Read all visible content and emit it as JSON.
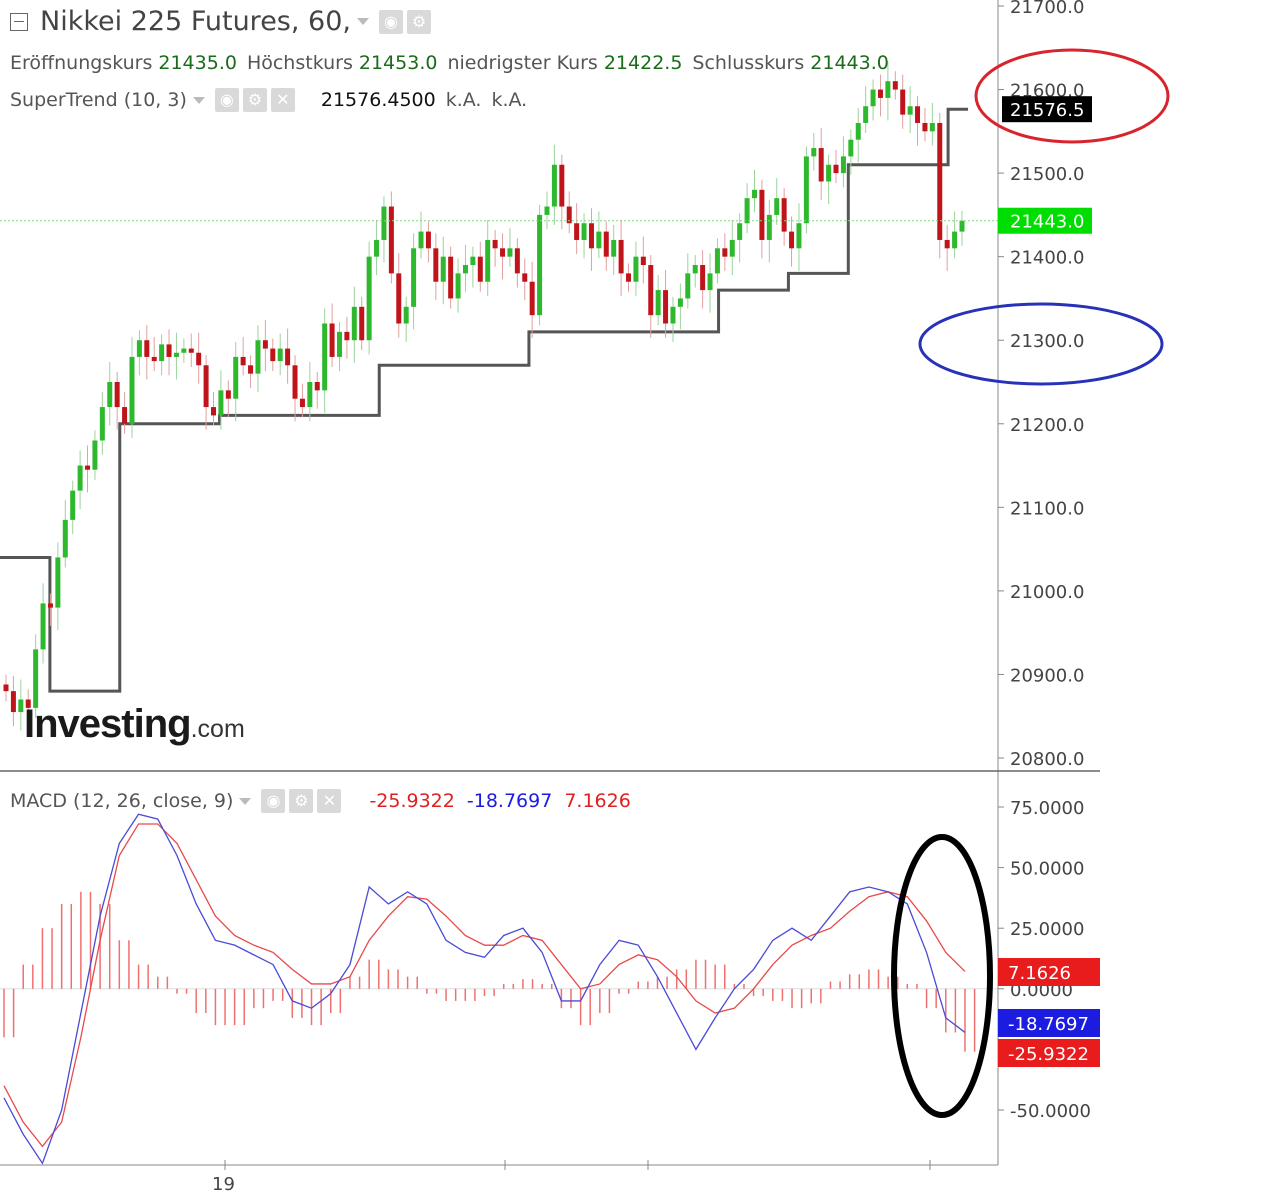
{
  "header": {
    "title": "Nikkei 225 Futures, 60,",
    "ohlc": [
      {
        "label": "Eröffnungskurs",
        "value": "21435.0"
      },
      {
        "label": "Höchstkurs",
        "value": "21453.0"
      },
      {
        "label": "niedrigster Kurs",
        "value": "21422.5"
      },
      {
        "label": "Schlusskurs",
        "value": "21443.0"
      }
    ]
  },
  "supertrend_legend": {
    "name": "SuperTrend (10, 3)",
    "value": "21576.4500",
    "na1": "k.A.",
    "na2": "k.A."
  },
  "macd_legend": {
    "name": "MACD (12, 26, close, 9)",
    "histogram": "-25.9322",
    "macd": "-18.7697",
    "signal": "7.1626"
  },
  "logo": {
    "main": "Investing",
    "suffix": ".com"
  },
  "colors": {
    "up": "#2eb82e",
    "down": "#c0141b",
    "supertrend": "#555555",
    "macd_line": "#4a4ad6",
    "signal_line": "#e84a4a",
    "histogram": "#f07070",
    "last_price": "#00dd00"
  },
  "annotations": [
    {
      "shape": "ellipse",
      "color": "#d9232d",
      "around": "21576.5"
    },
    {
      "shape": "ellipse",
      "color": "#2832b8",
      "around": "21300.0"
    },
    {
      "shape": "ellipse",
      "color": "#000000",
      "around": "MACD crossover"
    }
  ],
  "chart_data": [
    {
      "type": "candlestick",
      "title": "Nikkei 225 Futures, 60,",
      "y_ticks": [
        "21700.0",
        "21600.0",
        "21500.0",
        "21400.0",
        "21300.0",
        "21200.0",
        "21100.0",
        "21000.0",
        "20900.0",
        "20800.0"
      ],
      "ylim": [
        20800,
        21700
      ],
      "x_tick_labels": [
        "19"
      ],
      "last_price_label": "21443.0",
      "last_price_value": 21443.0,
      "supertrend_label": "21576.5",
      "supertrend_last_value": 21576.5,
      "candles_close": [
        20880,
        20855,
        20870,
        20860,
        20930,
        20985,
        20980,
        21040,
        21085,
        21120,
        21150,
        21145,
        21180,
        21220,
        21250,
        21220,
        21200,
        21280,
        21300,
        21280,
        21275,
        21295,
        21280,
        21285,
        21290,
        21285,
        21270,
        21220,
        21210,
        21240,
        21230,
        21280,
        21270,
        21260,
        21300,
        21290,
        21275,
        21290,
        21270,
        21230,
        21220,
        21250,
        21240,
        21320,
        21280,
        21310,
        21300,
        21340,
        21300,
        21400,
        21420,
        21460,
        21380,
        21320,
        21340,
        21410,
        21430,
        21410,
        21370,
        21400,
        21350,
        21380,
        21390,
        21400,
        21370,
        21420,
        21410,
        21400,
        21410,
        21380,
        21370,
        21330,
        21450,
        21460,
        21510,
        21460,
        21440,
        21420,
        21440,
        21410,
        21430,
        21400,
        21420,
        21380,
        21370,
        21400,
        21390,
        21330,
        21360,
        21320,
        21340,
        21350,
        21380,
        21390,
        21360,
        21380,
        21410,
        21400,
        21420,
        21440,
        21470,
        21480,
        21420,
        21450,
        21470,
        21430,
        21410,
        21440,
        21520,
        21530,
        21490,
        21510,
        21500,
        21520,
        21540,
        21560,
        21580,
        21600,
        21590,
        21610,
        21600,
        21570,
        21580,
        21560,
        21550,
        21560,
        21420,
        21410,
        21430,
        21443
      ],
      "supertrend_steps": [
        {
          "x_from": 0.0,
          "x_to": 0.05,
          "value": 21040
        },
        {
          "x_from": 0.05,
          "x_to": 0.12,
          "value": 20880
        },
        {
          "x_from": 0.12,
          "x_to": 0.22,
          "value": 21200
        },
        {
          "x_from": 0.22,
          "x_to": 0.33,
          "value": 21210
        },
        {
          "x_from": 0.33,
          "x_to": 0.38,
          "value": 21210
        },
        {
          "x_from": 0.38,
          "x_to": 0.53,
          "value": 21270
        },
        {
          "x_from": 0.53,
          "x_to": 0.72,
          "value": 21310
        },
        {
          "x_from": 0.72,
          "x_to": 0.79,
          "value": 21360
        },
        {
          "x_from": 0.79,
          "x_to": 0.85,
          "value": 21380
        },
        {
          "x_from": 0.85,
          "x_to": 0.95,
          "value": 21510
        },
        {
          "x_from": 0.95,
          "x_to": 0.97,
          "value": 21576.5
        }
      ]
    },
    {
      "type": "line",
      "title": "MACD (12, 26, close, 9)",
      "y_ticks": [
        "75.0000",
        "50.0000",
        "25.0000",
        "0.0000",
        "-50.0000"
      ],
      "ylim": [
        -72,
        83
      ],
      "series": [
        {
          "name": "MACD",
          "values": [
            -45,
            -60,
            -72,
            -50,
            -10,
            30,
            60,
            72,
            70,
            55,
            35,
            20,
            18,
            14,
            10,
            -5,
            -8,
            -2,
            10,
            42,
            35,
            40,
            35,
            20,
            15,
            13,
            22,
            25,
            15,
            -5,
            -5,
            10,
            20,
            18,
            5,
            -10,
            -25,
            -12,
            0,
            8,
            20,
            25,
            20,
            30,
            40,
            42,
            40,
            35,
            15,
            -12,
            -18
          ]
        },
        {
          "name": "Signal",
          "values": [
            -40,
            -55,
            -65,
            -55,
            -20,
            20,
            55,
            68,
            68,
            60,
            45,
            30,
            22,
            18,
            15,
            8,
            2,
            2,
            5,
            20,
            30,
            38,
            37,
            30,
            22,
            18,
            18,
            22,
            20,
            10,
            0,
            2,
            10,
            14,
            12,
            5,
            -5,
            -10,
            -8,
            0,
            10,
            18,
            22,
            25,
            32,
            38,
            40,
            38,
            28,
            15,
            7.16
          ]
        },
        {
          "name": "Histogram",
          "values": [
            -20,
            10,
            25,
            35,
            40,
            35,
            20,
            10,
            5,
            -2,
            -10,
            -15,
            -15,
            -8,
            -5,
            -12,
            -15,
            -10,
            5,
            12,
            8,
            5,
            -2,
            -5,
            -5,
            -3,
            2,
            4,
            2,
            -8,
            -15,
            -10,
            -2,
            3,
            5,
            8,
            12,
            10,
            2,
            -3,
            -5,
            -8,
            -6,
            3,
            6,
            8,
            5,
            2,
            -8,
            -18,
            -25.9322
          ]
        }
      ],
      "macd_label": "-18.7697",
      "signal_label": "7.1626",
      "histogram_label": "-25.9322",
      "x_tick_labels": [
        "19"
      ]
    }
  ]
}
